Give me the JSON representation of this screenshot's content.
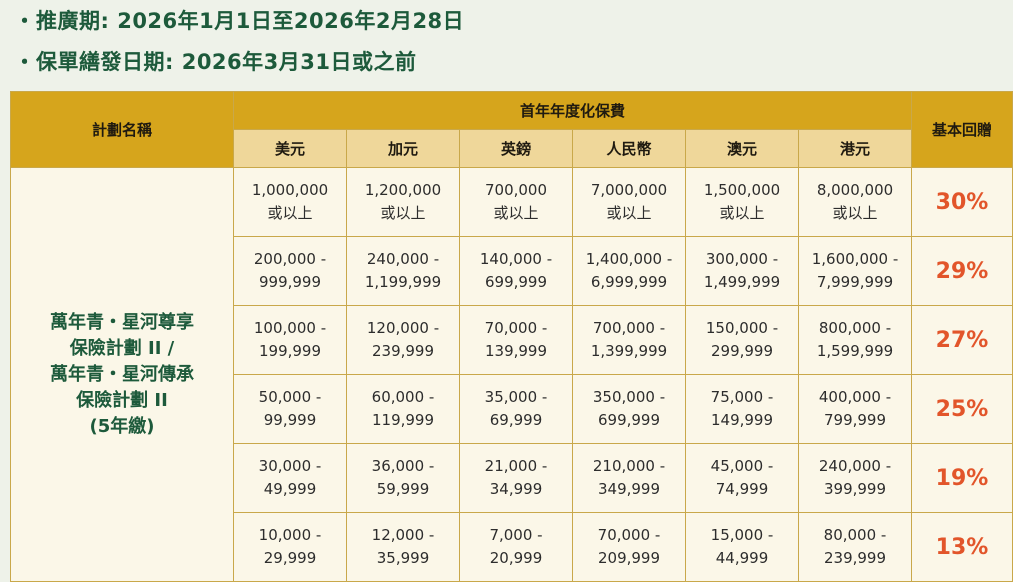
{
  "bullets": {
    "dot": "・",
    "promo_period": "推廣期: 2026年1月1日至2026年2月28日",
    "issue_date": "保單繕發日期: 2026年3月31日或之前"
  },
  "table": {
    "plan_name_header": "計劃名稱",
    "premium_header": "首年年度化保費",
    "rebate_header": "基本回贈",
    "currencies": [
      "美元",
      "加元",
      "英鎊",
      "人民幣",
      "澳元",
      "港元"
    ],
    "plan_lines": [
      "萬年青・星河尊享",
      "保險計劃 II /",
      "萬年青・星河傳承",
      "保險計劃 II",
      "(5年繳)"
    ],
    "rows": [
      {
        "cells": [
          [
            "1,000,000",
            "或以上"
          ],
          [
            "1,200,000",
            "或以上"
          ],
          [
            "700,000",
            "或以上"
          ],
          [
            "7,000,000",
            "或以上"
          ],
          [
            "1,500,000",
            "或以上"
          ],
          [
            "8,000,000",
            "或以上"
          ]
        ],
        "rebate": "30%"
      },
      {
        "cells": [
          [
            "200,000 -",
            "999,999"
          ],
          [
            "240,000 -",
            "1,199,999"
          ],
          [
            "140,000 -",
            "699,999"
          ],
          [
            "1,400,000 -",
            "6,999,999"
          ],
          [
            "300,000 -",
            "1,499,999"
          ],
          [
            "1,600,000 -",
            "7,999,999"
          ]
        ],
        "rebate": "29%"
      },
      {
        "cells": [
          [
            "100,000 -",
            "199,999"
          ],
          [
            "120,000 -",
            "239,999"
          ],
          [
            "70,000 -",
            "139,999"
          ],
          [
            "700,000 -",
            "1,399,999"
          ],
          [
            "150,000 -",
            "299,999"
          ],
          [
            "800,000 -",
            "1,599,999"
          ]
        ],
        "rebate": "27%"
      },
      {
        "cells": [
          [
            "50,000 -",
            "99,999"
          ],
          [
            "60,000 -",
            "119,999"
          ],
          [
            "35,000 -",
            "69,999"
          ],
          [
            "350,000 -",
            "699,999"
          ],
          [
            "75,000 -",
            "149,999"
          ],
          [
            "400,000 -",
            "799,999"
          ]
        ],
        "rebate": "25%"
      },
      {
        "cells": [
          [
            "30,000 -",
            "49,999"
          ],
          [
            "36,000 -",
            "59,999"
          ],
          [
            "21,000 -",
            "34,999"
          ],
          [
            "210,000 -",
            "349,999"
          ],
          [
            "45,000 -",
            "74,999"
          ],
          [
            "240,000 -",
            "399,999"
          ]
        ],
        "rebate": "19%"
      },
      {
        "cells": [
          [
            "10,000 -",
            "29,999"
          ],
          [
            "12,000 -",
            "35,999"
          ],
          [
            "7,000 -",
            "20,999"
          ],
          [
            "70,000 -",
            "209,999"
          ],
          [
            "15,000 -",
            "44,999"
          ],
          [
            "80,000 -",
            "239,999"
          ]
        ],
        "rebate": "13%"
      }
    ]
  }
}
